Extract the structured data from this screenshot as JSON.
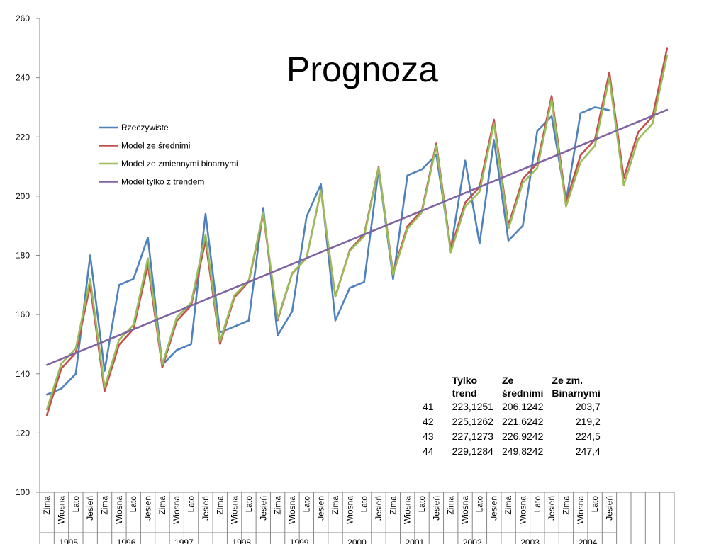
{
  "chart_data": {
    "type": "line",
    "title": "Prognoza",
    "xlabel": "",
    "ylabel": "",
    "ylim": [
      100,
      260
    ],
    "yticks": [
      100,
      120,
      140,
      160,
      180,
      200,
      220,
      240,
      260
    ],
    "grid": false,
    "legend_position": "upper-left",
    "season_labels": [
      "Zima",
      "Wiosna",
      "Lato",
      "Jesień"
    ],
    "year_labels": [
      "1995",
      "1996",
      "1997",
      "1998",
      "1999",
      "2000",
      "2001",
      "2002",
      "2003",
      "2004"
    ],
    "period_count": 44,
    "series": [
      {
        "name": "Rzeczywiste",
        "color": "#4f81bd",
        "values": [
          133,
          135,
          140,
          180,
          141,
          170,
          172,
          186,
          143,
          148,
          150,
          194,
          154,
          156,
          158,
          196,
          153,
          161,
          193,
          204,
          158,
          169,
          171,
          209,
          172,
          207,
          209,
          214,
          182,
          212,
          184,
          219,
          185,
          190,
          222,
          227,
          198,
          228,
          230,
          229
        ]
      },
      {
        "name": "Model ze średnimi",
        "color": "#c0504d",
        "values": [
          126.1,
          141.8,
          147.1,
          169.8,
          134.1,
          149.8,
          155.1,
          176.8,
          142.1,
          157.8,
          163.1,
          184.8,
          150.1,
          165.8,
          171.1,
          193.8,
          158.1,
          173.8,
          179.1,
          201.8,
          166.1,
          181.8,
          187.1,
          209.8,
          174.1,
          189.8,
          195.1,
          217.8,
          182.1,
          197.8,
          203.1,
          225.8,
          190.1,
          205.8,
          211.1,
          233.8,
          198.1,
          213.8,
          219.1,
          241.8,
          206.1,
          221.6,
          226.9,
          249.8
        ]
      },
      {
        "name": "Model ze zmiennymi binarnymi",
        "color": "#9bbb59",
        "values": [
          128,
          143.5,
          148.5,
          172,
          135.5,
          151.5,
          156.5,
          179,
          143,
          159,
          164,
          187,
          151,
          166.5,
          171.5,
          194.5,
          158.5,
          174,
          179,
          202,
          166,
          181.5,
          186.5,
          209.5,
          173.5,
          189,
          194.5,
          217,
          181,
          196.5,
          201.5,
          224.5,
          189,
          204.5,
          209.5,
          232.5,
          196.5,
          211.5,
          217,
          240,
          203.7,
          219.2,
          224.5,
          247.4
        ]
      },
      {
        "name": "Model tylko z trendem",
        "color": "#8064a2",
        "trend": {
          "start": 143,
          "end": 229.1284
        }
      }
    ]
  },
  "table": {
    "headers": [
      "",
      "Tylko\ntrend",
      "Ze\nśrednimi",
      "Ze zm.\nBinarnymi"
    ],
    "rows": [
      [
        "41",
        "223,1251",
        "206,1242",
        "203,7"
      ],
      [
        "42",
        "225,1262",
        "221,6242",
        "219,2"
      ],
      [
        "43",
        "227,1273",
        "226,9242",
        "224,5"
      ],
      [
        "44",
        "229,1284",
        "249,8242",
        "247,4"
      ]
    ]
  }
}
